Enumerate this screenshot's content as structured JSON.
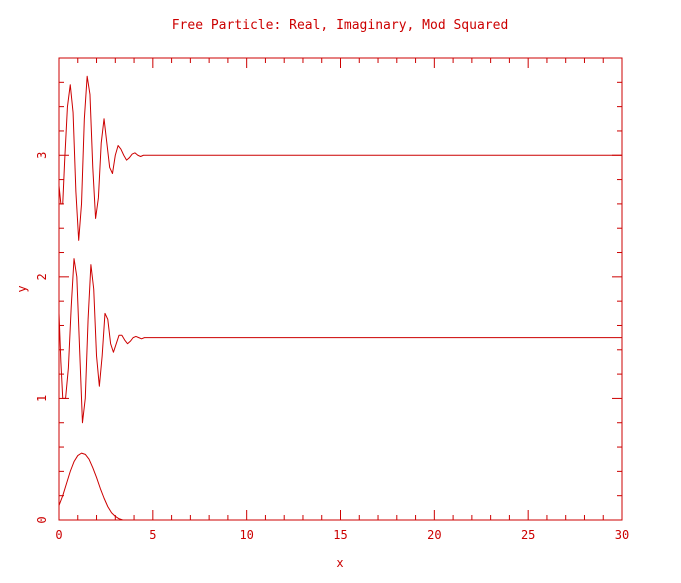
{
  "chart_data": {
    "type": "line",
    "title": "Free Particle: Real, Imaginary, Mod Squared",
    "xlabel": "x",
    "ylabel": "y",
    "xlim": [
      0,
      30
    ],
    "ylim": [
      0,
      3.8
    ],
    "x_ticks": [
      0,
      5,
      10,
      15,
      20,
      25,
      30
    ],
    "y_ticks": [
      0,
      1,
      2,
      3
    ],
    "grid": false,
    "legend": "none",
    "color": "#cc0000",
    "series": [
      {
        "x": [
          0,
          0.1,
          0.2,
          0.3,
          0.45,
          0.6,
          0.75,
          0.9,
          1.05,
          1.2,
          1.35,
          1.5,
          1.65,
          1.8,
          1.95,
          2.1,
          2.25,
          2.4,
          2.55,
          2.7,
          2.85,
          3.0,
          3.15,
          3.3,
          3.45,
          3.6,
          3.75,
          3.9,
          4.05,
          4.2,
          4.35,
          4.5,
          4.65,
          4.8,
          5.0,
          30
        ],
        "y": [
          2.75,
          2.6,
          2.6,
          2.95,
          3.4,
          3.58,
          3.35,
          2.7,
          2.3,
          2.6,
          3.3,
          3.65,
          3.5,
          2.9,
          2.48,
          2.65,
          3.1,
          3.3,
          3.1,
          2.9,
          2.85,
          3.0,
          3.08,
          3.05,
          3.0,
          2.96,
          2.98,
          3.01,
          3.02,
          3.0,
          2.99,
          3.0,
          3.0,
          3.0,
          3.0,
          3.0
        ]
      },
      {
        "x": [
          0,
          0.1,
          0.2,
          0.35,
          0.5,
          0.65,
          0.8,
          0.95,
          1.1,
          1.25,
          1.4,
          1.55,
          1.7,
          1.85,
          2.0,
          2.15,
          2.3,
          2.45,
          2.6,
          2.75,
          2.9,
          3.05,
          3.2,
          3.35,
          3.5,
          3.65,
          3.8,
          3.95,
          4.1,
          4.25,
          4.4,
          4.55,
          4.7,
          4.85,
          5.0,
          30
        ],
        "y": [
          1.7,
          1.3,
          1.0,
          1.0,
          1.25,
          1.75,
          2.15,
          2.0,
          1.4,
          0.8,
          1.0,
          1.65,
          2.1,
          1.9,
          1.35,
          1.1,
          1.35,
          1.7,
          1.65,
          1.45,
          1.38,
          1.45,
          1.52,
          1.52,
          1.48,
          1.45,
          1.47,
          1.5,
          1.51,
          1.5,
          1.49,
          1.5,
          1.5,
          1.5,
          1.5,
          1.5
        ]
      },
      {
        "x": [
          0,
          0.2,
          0.4,
          0.6,
          0.8,
          1.0,
          1.2,
          1.4,
          1.6,
          1.8,
          2.0,
          2.2,
          2.4,
          2.6,
          2.8,
          3.0,
          3.2,
          3.4,
          3.6,
          3.8,
          4.0,
          5.0,
          30
        ],
        "y": [
          0.12,
          0.2,
          0.3,
          0.4,
          0.48,
          0.53,
          0.55,
          0.54,
          0.5,
          0.43,
          0.35,
          0.26,
          0.18,
          0.11,
          0.06,
          0.03,
          0.01,
          0.0,
          0.0,
          0.0,
          0.0,
          0.0,
          0.0
        ]
      }
    ]
  }
}
